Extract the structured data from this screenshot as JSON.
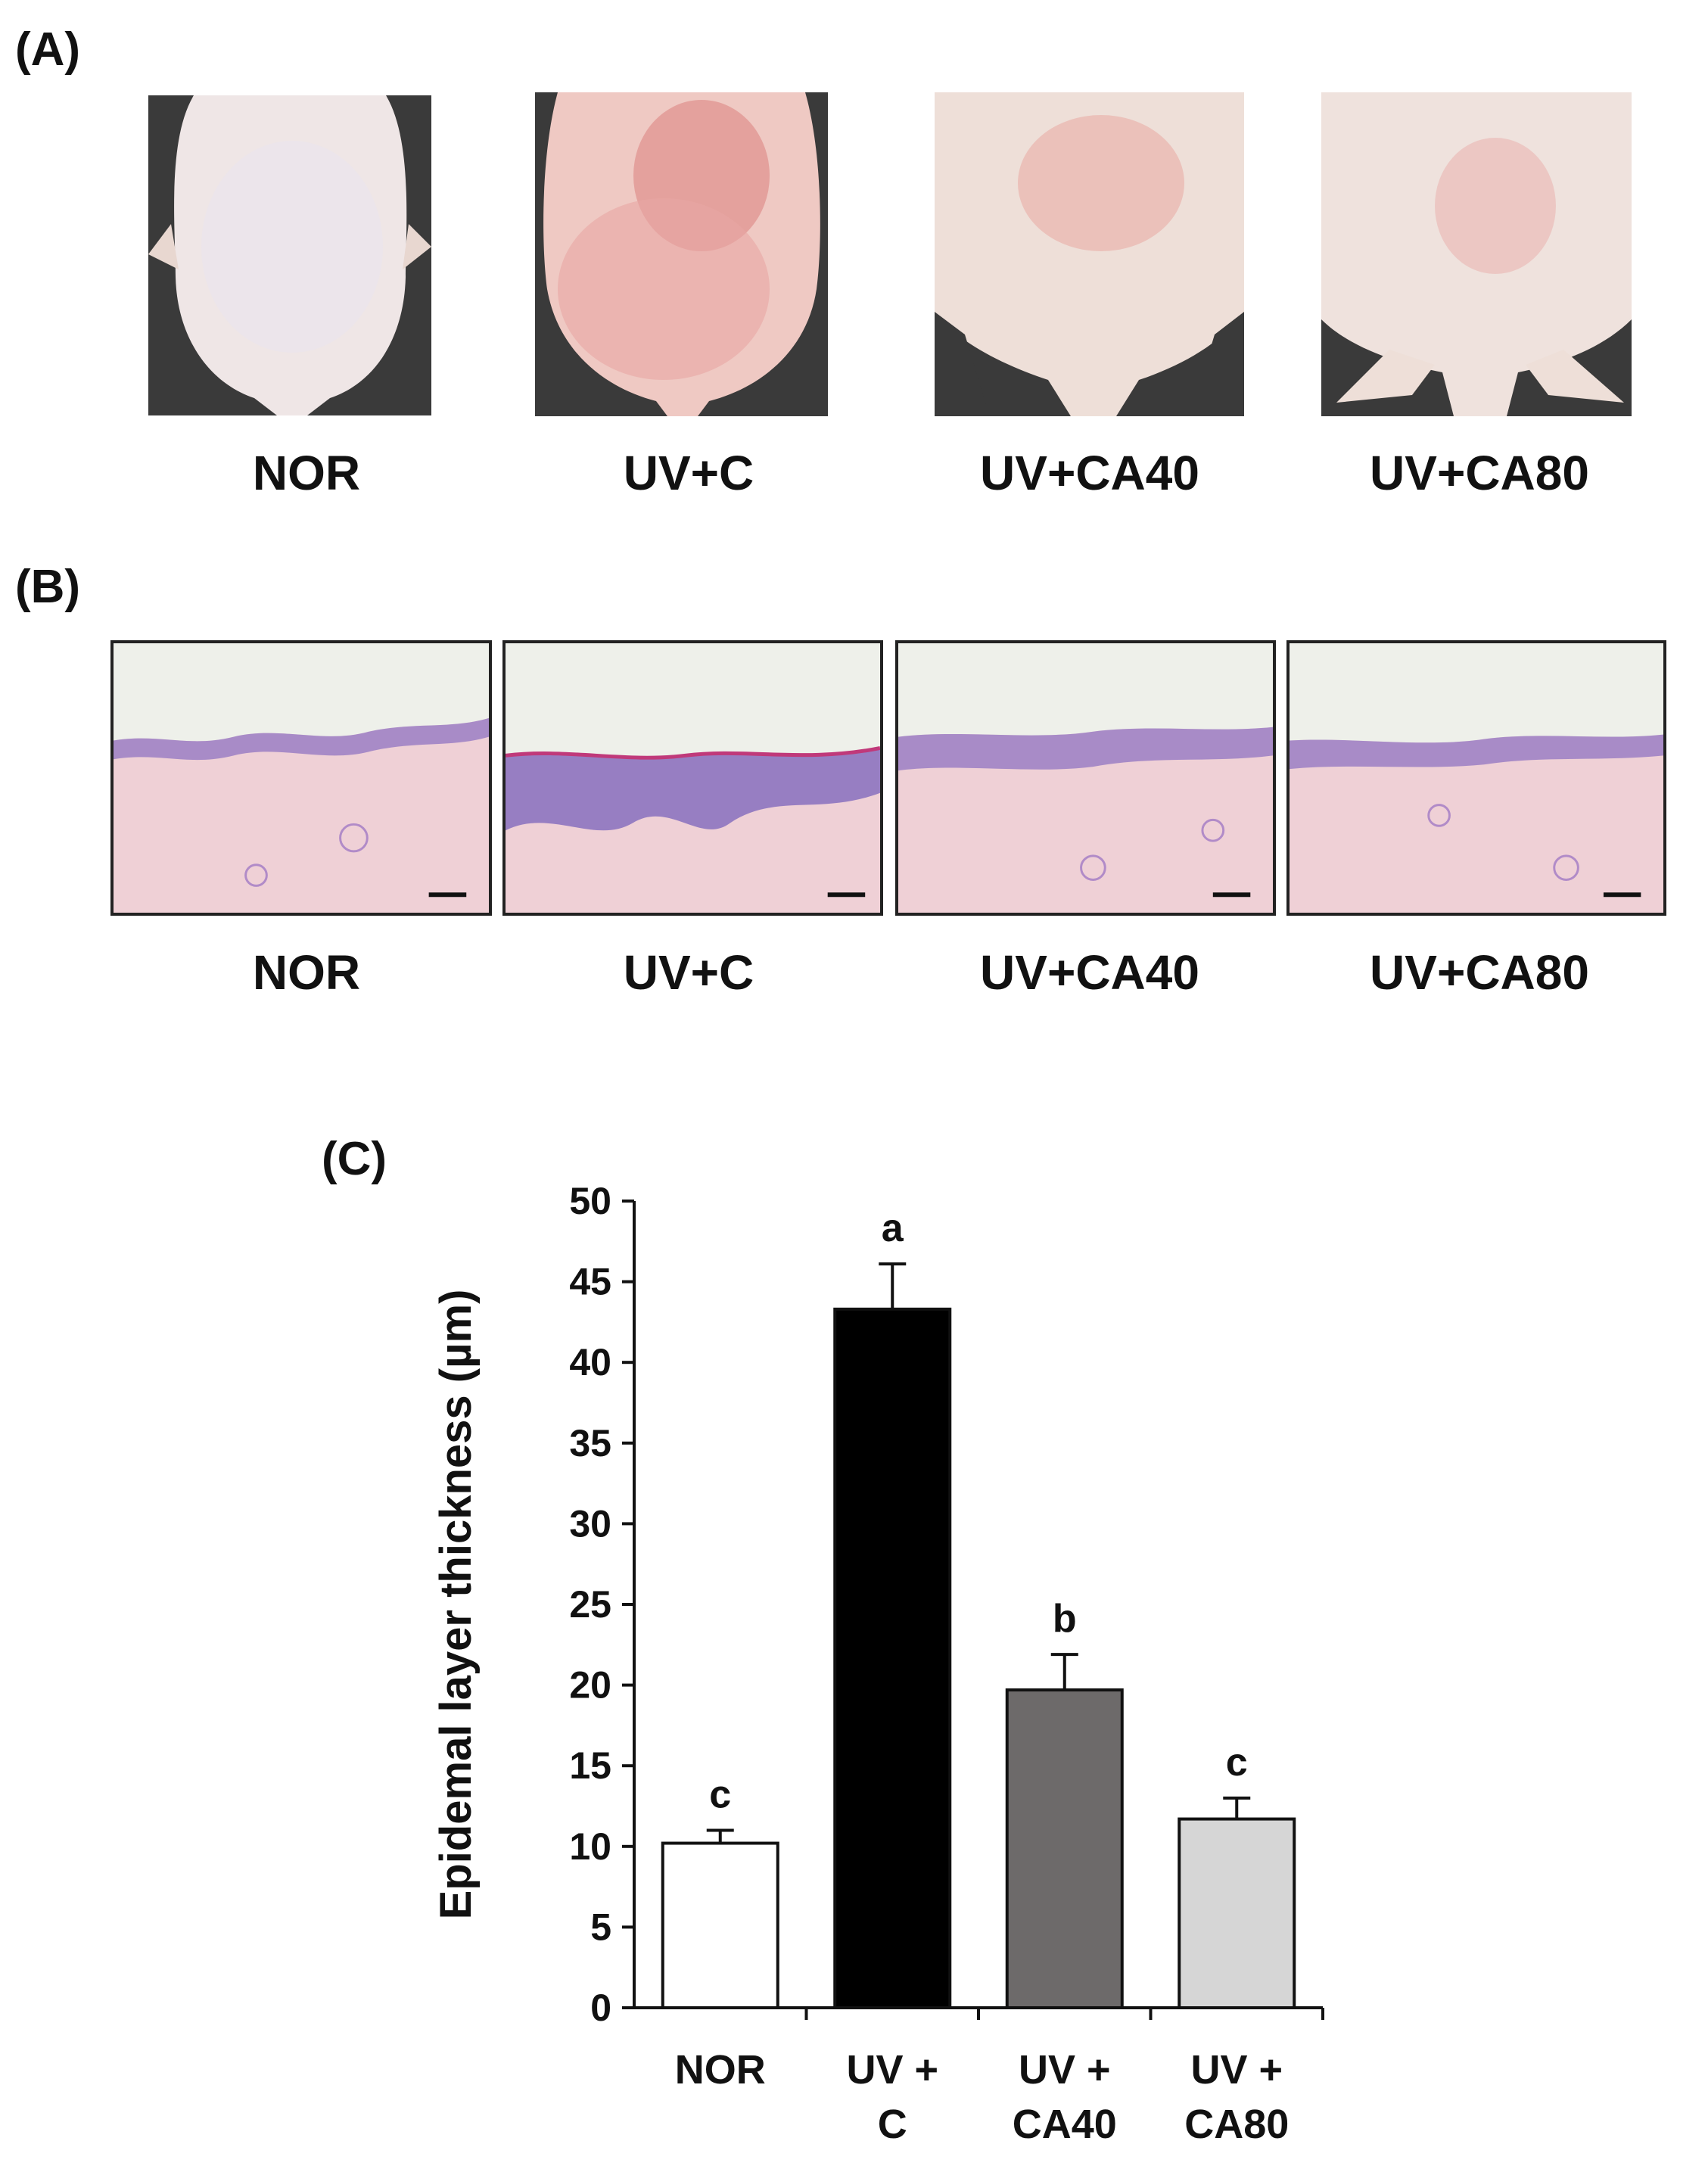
{
  "panels": {
    "a": {
      "label": "(A)",
      "captions": [
        "NOR",
        "UV+C",
        "UV+CA40",
        "UV+CA80"
      ]
    },
    "b": {
      "label": "(B)",
      "captions": [
        "NOR",
        "UV+C",
        "UV+CA40",
        "UV+CA80"
      ]
    },
    "c": {
      "label": "(C)"
    }
  },
  "colors": {
    "photo_background": "#3a3a3a",
    "skin_normal": "#efe6e6",
    "skin_erythema": "#e8a7a4",
    "dermis": "#efd0d6",
    "epidermis": "#9b7fc4"
  },
  "chart_data": {
    "type": "bar",
    "categories": [
      [
        "NOR"
      ],
      [
        "UV +",
        "C"
      ],
      [
        "UV +",
        "CA40"
      ],
      [
        "UV +",
        "CA80"
      ]
    ],
    "values": [
      10.2,
      43.3,
      19.7,
      11.7
    ],
    "errors": [
      0.8,
      2.8,
      2.2,
      1.3
    ],
    "significance": [
      "c",
      "a",
      "b",
      "c"
    ],
    "bar_colors": [
      "#ffffff",
      "#000000",
      "#6d6a6a",
      "#d6d6d6"
    ],
    "xlabel": "",
    "ylabel": "Epidemal layer thickness (µm)",
    "ylim": [
      0,
      50
    ],
    "yticks": [
      0,
      5,
      10,
      15,
      20,
      25,
      30,
      35,
      40,
      45,
      50
    ],
    "grid": false
  }
}
